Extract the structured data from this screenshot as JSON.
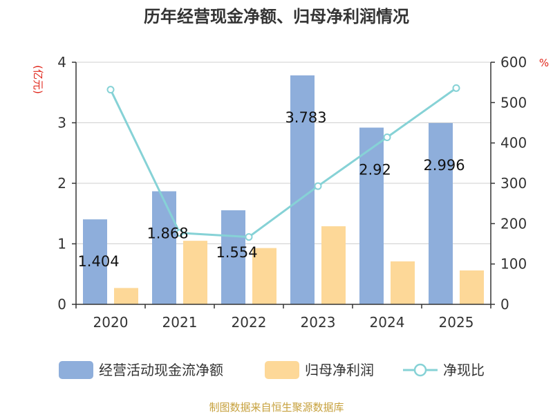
{
  "chart_data": {
    "type": "bar",
    "title": "历年经营现金净额、归母净利润情况",
    "categories": [
      "2020",
      "2021",
      "2022",
      "2023",
      "2024",
      "2025"
    ],
    "y_left": {
      "unit": "(亿元)",
      "ylim": [
        0,
        4
      ],
      "ticks": [
        "0",
        "1",
        "2",
        "3",
        "4"
      ]
    },
    "y_right": {
      "unit": "%",
      "ylim": [
        0,
        600
      ],
      "ticks": [
        "0",
        "100",
        "200",
        "300",
        "400",
        "500",
        "600"
      ]
    },
    "series": [
      {
        "name": "经营活动现金流净额",
        "type": "bar",
        "axis": "left",
        "color": "#8eaedb",
        "values": [
          1.404,
          1.868,
          1.554,
          3.783,
          2.92,
          2.996
        ],
        "labels": [
          "1.404",
          "1.868",
          "1.554",
          "3.783",
          "2.92",
          "2.996"
        ]
      },
      {
        "name": "归母净利润",
        "type": "bar",
        "axis": "left",
        "color": "#fdd898",
        "values": [
          0.27,
          1.05,
          0.93,
          1.29,
          0.71,
          0.56
        ]
      },
      {
        "name": "净现比",
        "type": "line",
        "axis": "right",
        "color": "#86d2d6",
        "values": [
          532,
          177,
          167,
          293,
          414,
          536
        ]
      }
    ],
    "grid": true,
    "legend_position": "bottom"
  },
  "source": "制图数据来自恒生聚源数据库"
}
